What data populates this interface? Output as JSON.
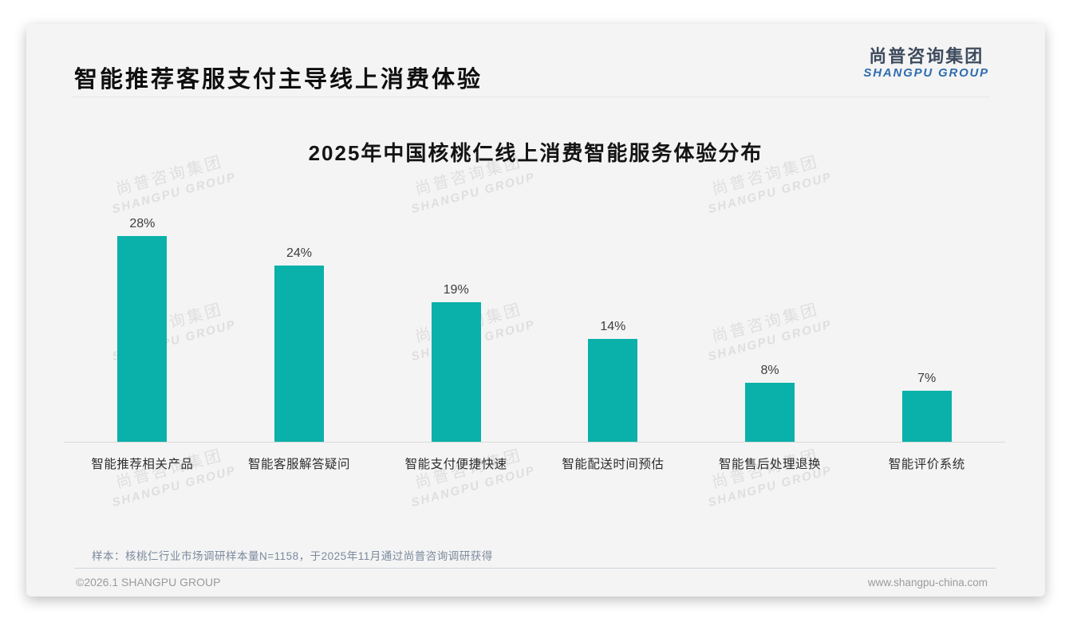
{
  "page": {
    "header_title": "智能推荐客服支付主导线上消费体验",
    "logo": {
      "cn": "尚普咨询集团",
      "en": "SHANGPU GROUP"
    },
    "watermark": {
      "cn": "尚普咨询集团",
      "en": "SHANGPU GROUP"
    },
    "footnote": "样本：核桃仁行业市场调研样本量N=1158，于2025年11月通过尚普咨询调研获得",
    "footer_left": "©2026.1 SHANGPU GROUP",
    "footer_right": "www.shangpu-china.com"
  },
  "colors": {
    "bar": "#0ab0aa",
    "card_background": "#f4f4f4",
    "logo_blue": "#2e6cb0",
    "logo_dark": "#3e4b5e"
  },
  "chart_data": {
    "type": "bar",
    "title": "2025年中国核桃仁线上消费智能服务体验分布",
    "categories": [
      "智能推荐相关产品",
      "智能客服解答疑问",
      "智能支付便捷快速",
      "智能配送时间预估",
      "智能售后处理退换",
      "智能评价系统"
    ],
    "values": [
      28,
      24,
      19,
      14,
      8,
      7
    ],
    "value_labels": [
      "28%",
      "24%",
      "19%",
      "14%",
      "8%",
      "7%"
    ],
    "unit": "%",
    "xlabel": "",
    "ylabel": "",
    "ylim": [
      0,
      30
    ],
    "grid": false,
    "legend": false,
    "bar_color": "#0ab0aa"
  }
}
